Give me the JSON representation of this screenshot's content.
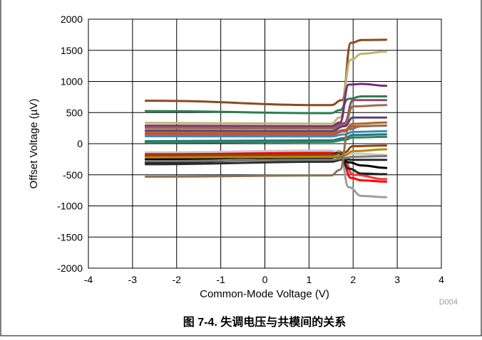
{
  "caption": "图 7-4. 失调电压与共模间的关系",
  "figure_code": "D004",
  "chart_data": {
    "type": "line",
    "title": "",
    "xlabel": "Common-Mode Voltage (V)",
    "ylabel": "Offset Voltage (µV)",
    "xlim": [
      -4,
      4
    ],
    "ylim": [
      -2000,
      2000
    ],
    "x_ticks": [
      "-4",
      "-3",
      "-2",
      "-1",
      "0",
      "1",
      "2",
      "3",
      "4"
    ],
    "y_ticks": [
      "2000",
      "1500",
      "1000",
      "500",
      "0",
      "-500",
      "-1000",
      "-1500",
      "-2000"
    ],
    "grid": true,
    "legend": "none",
    "series": [
      {
        "color": "#8B4A1E",
        "points": [
          [
            -2.7,
            690
          ],
          [
            1.5,
            620
          ],
          [
            1.75,
            700
          ],
          [
            1.95,
            1620
          ],
          [
            2.2,
            1665
          ],
          [
            2.75,
            1670
          ]
        ]
      },
      {
        "color": "#BDB76B",
        "points": [
          [
            -2.7,
            335
          ],
          [
            1.5,
            320
          ],
          [
            1.7,
            420
          ],
          [
            1.95,
            1350
          ],
          [
            2.2,
            1445
          ],
          [
            2.75,
            1480
          ]
        ]
      },
      {
        "color": "#2E7D4F",
        "points": [
          [
            -2.7,
            525
          ],
          [
            1.5,
            490
          ],
          [
            1.7,
            540
          ],
          [
            1.9,
            720
          ],
          [
            2.2,
            760
          ],
          [
            2.75,
            760
          ]
        ]
      },
      {
        "color": "#7B2A7B",
        "points": [
          [
            -2.7,
            290
          ],
          [
            1.5,
            280
          ],
          [
            1.7,
            340
          ],
          [
            1.9,
            950
          ],
          [
            2.2,
            960
          ],
          [
            2.75,
            930
          ]
        ]
      },
      {
        "color": "#8E4A6E",
        "points": [
          [
            -2.7,
            270
          ],
          [
            1.5,
            260
          ],
          [
            1.8,
            330
          ],
          [
            2.0,
            700
          ],
          [
            2.75,
            700
          ]
        ]
      },
      {
        "color": "#9C6B4E",
        "points": [
          [
            -2.7,
            250
          ],
          [
            1.5,
            240
          ],
          [
            1.8,
            300
          ],
          [
            2.0,
            600
          ],
          [
            2.75,
            620
          ]
        ]
      },
      {
        "color": "#5A3F85",
        "points": [
          [
            -2.7,
            210
          ],
          [
            1.5,
            200
          ],
          [
            1.8,
            280
          ],
          [
            2.0,
            420
          ],
          [
            2.75,
            420
          ]
        ]
      },
      {
        "color": "#B5651D",
        "points": [
          [
            -2.7,
            180
          ],
          [
            1.5,
            170
          ],
          [
            1.8,
            220
          ],
          [
            2.0,
            320
          ],
          [
            2.75,
            340
          ]
        ]
      },
      {
        "color": "#C0504D",
        "points": [
          [
            -2.7,
            150
          ],
          [
            1.5,
            145
          ],
          [
            1.8,
            200
          ],
          [
            2.0,
            280
          ],
          [
            2.75,
            290
          ]
        ]
      },
      {
        "color": "#3A8FB7",
        "points": [
          [
            -2.7,
            120
          ],
          [
            1.5,
            115
          ],
          [
            1.8,
            150
          ],
          [
            2.0,
            190
          ],
          [
            2.75,
            200
          ]
        ]
      },
      {
        "color": "#2C6E8A",
        "points": [
          [
            -2.7,
            40
          ],
          [
            1.5,
            55
          ],
          [
            1.8,
            90
          ],
          [
            2.0,
            140
          ],
          [
            2.75,
            150
          ]
        ]
      },
      {
        "color": "#2E8B57",
        "points": [
          [
            -2.7,
            20
          ],
          [
            1.5,
            30
          ],
          [
            1.8,
            60
          ],
          [
            2.0,
            100
          ],
          [
            2.75,
            110
          ]
        ]
      },
      {
        "color": "#9E9E9E",
        "points": [
          [
            -2.7,
            -150
          ],
          [
            1.5,
            -130
          ],
          [
            1.7,
            -120
          ],
          [
            1.9,
            -700
          ],
          [
            2.2,
            -840
          ],
          [
            2.75,
            -860
          ]
        ]
      },
      {
        "color": "#C8C8C8",
        "points": [
          [
            -2.7,
            -140
          ],
          [
            1.5,
            -110
          ],
          [
            1.8,
            -170
          ],
          [
            2.0,
            -160
          ],
          [
            2.75,
            -180
          ]
        ]
      },
      {
        "color": "#FF0000",
        "points": [
          [
            -2.7,
            -170
          ],
          [
            1.5,
            -150
          ],
          [
            1.75,
            -250
          ],
          [
            1.95,
            -550
          ],
          [
            2.2,
            -590
          ],
          [
            2.75,
            -610
          ]
        ]
      },
      {
        "color": "#FF3333",
        "points": [
          [
            -2.7,
            -210
          ],
          [
            1.5,
            -190
          ],
          [
            1.8,
            -270
          ],
          [
            2.0,
            -500
          ],
          [
            2.75,
            -570
          ]
        ]
      },
      {
        "color": "#000000",
        "points": [
          [
            -2.7,
            -250
          ],
          [
            1.4,
            -210
          ],
          [
            1.65,
            -150
          ],
          [
            1.9,
            -300
          ],
          [
            2.2,
            -350
          ],
          [
            2.75,
            -390
          ]
        ]
      },
      {
        "color": "#222222",
        "points": [
          [
            -2.7,
            -300
          ],
          [
            1.4,
            -240
          ],
          [
            1.7,
            -200
          ],
          [
            1.9,
            -400
          ],
          [
            2.2,
            -480
          ],
          [
            2.75,
            -490
          ]
        ]
      },
      {
        "color": "#2A2A2A",
        "points": [
          [
            -2.7,
            -330
          ],
          [
            1.5,
            -290
          ],
          [
            1.8,
            -250
          ],
          [
            2.0,
            -260
          ],
          [
            2.75,
            -260
          ]
        ]
      },
      {
        "color": "#8B4513",
        "points": [
          [
            -2.7,
            -190
          ],
          [
            1.5,
            -180
          ],
          [
            1.8,
            -140
          ],
          [
            2.0,
            -40
          ],
          [
            2.75,
            -30
          ]
        ]
      },
      {
        "color": "#B8860B",
        "points": [
          [
            -2.7,
            -220
          ],
          [
            1.5,
            -210
          ],
          [
            1.8,
            -190
          ],
          [
            2.0,
            -120
          ],
          [
            2.75,
            -90
          ]
        ]
      },
      {
        "color": "#8B7355",
        "points": [
          [
            -2.7,
            -530
          ],
          [
            1.5,
            -510
          ],
          [
            1.7,
            -420
          ],
          [
            1.9,
            230
          ],
          [
            2.2,
            280
          ],
          [
            2.75,
            290
          ]
        ]
      },
      {
        "color": "#7A7A7A",
        "points": [
          [
            -2.7,
            -280
          ],
          [
            1.5,
            -260
          ],
          [
            1.8,
            -230
          ],
          [
            2.0,
            -210
          ],
          [
            2.75,
            -200
          ]
        ]
      }
    ]
  }
}
